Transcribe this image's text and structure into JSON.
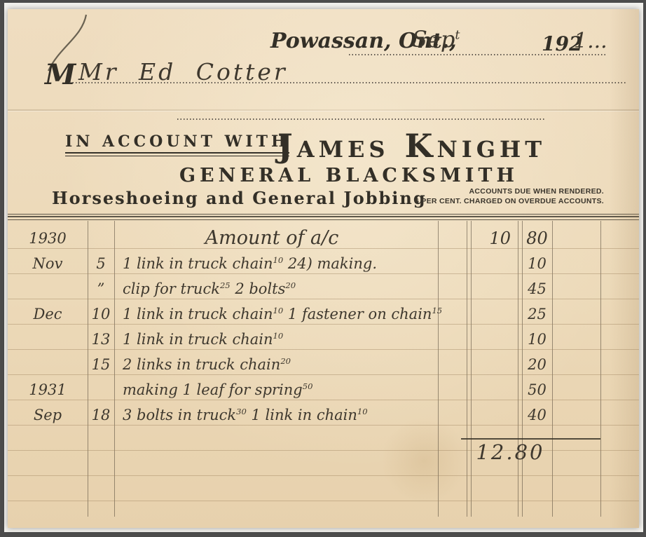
{
  "dateline": {
    "place": "Powassan, Ont.,",
    "month_written": "Sep^t",
    "year_printed": "192",
    "year_written": "1..."
  },
  "customer": {
    "prefix_printed": "M",
    "name_written": "Mr Ed Cotter"
  },
  "letterhead": {
    "account_label": "IN ACCOUNT WITH",
    "business_name": "James Knight",
    "business_type": "GENERAL BLACKSMITH",
    "services": "Horseshoeing and General Jobbing",
    "terms": [
      "ACCOUNTS DUE WHEN RENDERED.",
      "6 PER CENT. CHARGED ON OVERDUE ACCOUNTS."
    ]
  },
  "ledger": {
    "rows": [
      {
        "month": "1930",
        "day": "",
        "desc": "Amount of a/c",
        "dollars": "10",
        "cents": "80",
        "center": true
      },
      {
        "month": "Nov",
        "day": "5",
        "desc": "1 link in truck chain^10 24) making.",
        "dollars": "",
        "cents": "10"
      },
      {
        "month": "",
        "day": "”",
        "desc": "clip for truck^25 2 bolts^20",
        "dollars": "",
        "cents": "45"
      },
      {
        "month": "Dec",
        "day": "10",
        "desc": "1 link in truck chain^10 1 fastener on chain^15",
        "dollars": "",
        "cents": "25"
      },
      {
        "month": "",
        "day": "13",
        "desc": "1 link in truck chain^10",
        "dollars": "",
        "cents": "10"
      },
      {
        "month": "",
        "day": "15",
        "desc": "2 links in truck chain^20",
        "dollars": "",
        "cents": "20"
      },
      {
        "month": "1931",
        "day": "",
        "desc": "making 1 leaf for spring^50",
        "dollars": "",
        "cents": "50"
      },
      {
        "month": "Sep",
        "day": "18",
        "desc": "3 bolts in truck^30 1 link in chain^10",
        "dollars": "",
        "cents": "40"
      }
    ],
    "total": "12.80"
  },
  "colors": {
    "paper": "#ecd9b8",
    "printed_ink": "#332f27",
    "handwriting_ink": "#3e382e",
    "faint_rule": "#9b805c",
    "frame": "#4c4c4c"
  }
}
